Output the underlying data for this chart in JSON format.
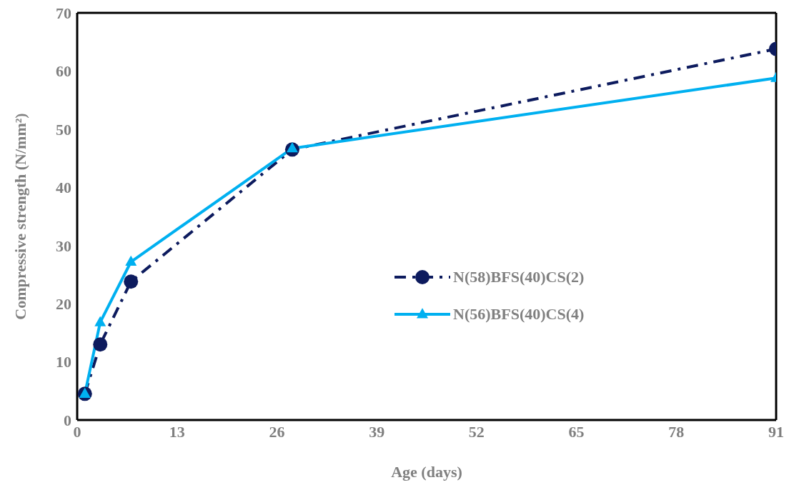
{
  "chart_data": {
    "type": "line",
    "xlabel": "Age (days)",
    "ylabel": "Compressive strength (N/mm²)",
    "x": [
      1,
      3,
      7,
      28,
      91
    ],
    "series": [
      {
        "name": "N(58)BFS(40)CS(2)",
        "color": "#0d1b5e",
        "values": [
          4.5,
          13,
          23.8,
          46.5,
          63.8
        ],
        "marker": "circle",
        "line_style": "dashed"
      },
      {
        "name": "N(56)BFS(40)CS(4)",
        "color": "#00b0f0",
        "values": [
          4.5,
          16.8,
          27.2,
          46.7,
          58.8
        ],
        "marker": "triangle",
        "line_style": "solid"
      }
    ],
    "xlim": [
      0,
      91
    ],
    "xticks": [
      0,
      13,
      26,
      39,
      52,
      65,
      78,
      91
    ],
    "ylim": [
      0,
      70
    ],
    "yticks": [
      0,
      10,
      20,
      30,
      40,
      50,
      60,
      70
    ],
    "grid": false,
    "legend": "right"
  }
}
